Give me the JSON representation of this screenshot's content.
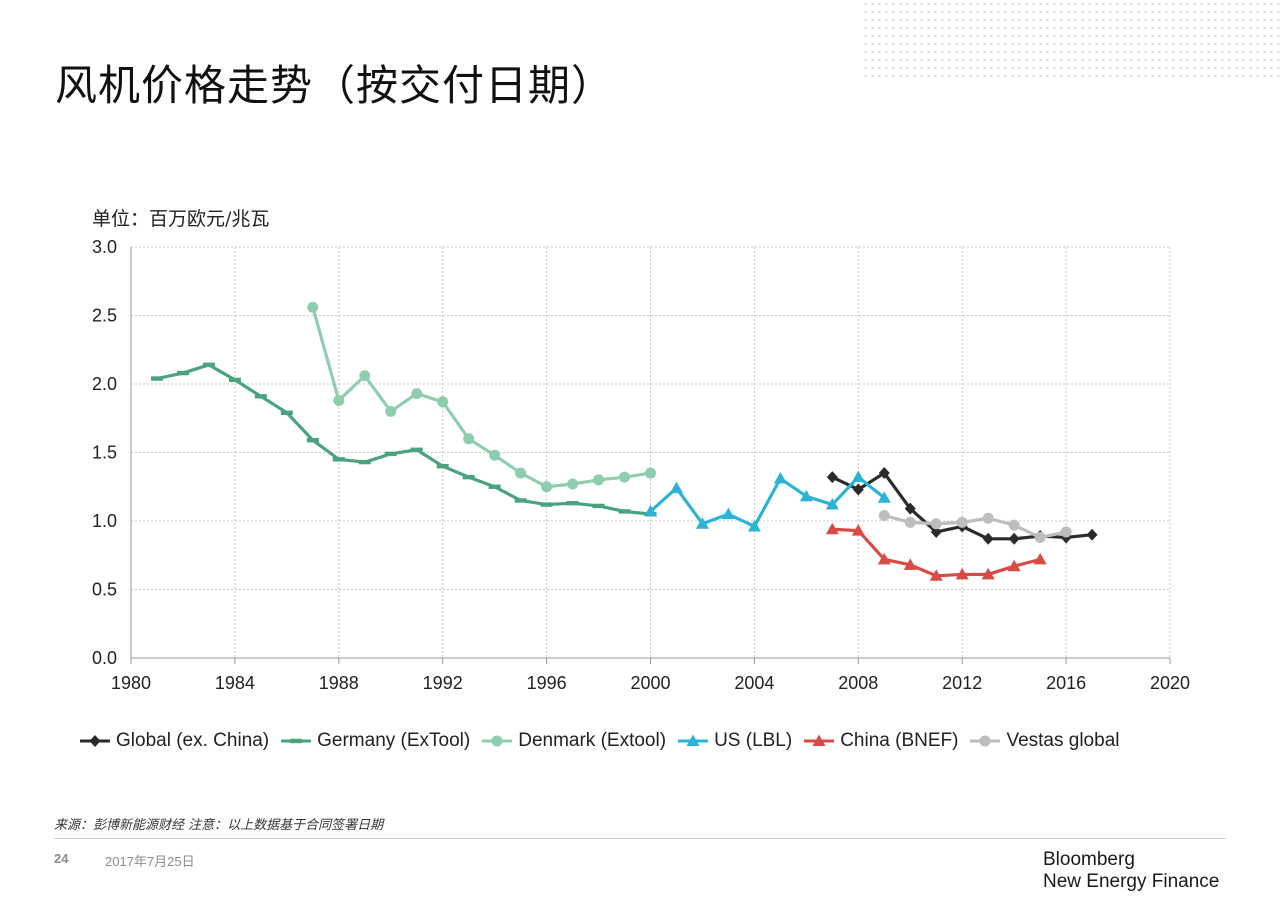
{
  "title": "风机价格走势（按交付日期）",
  "unit_label": "单位：百万欧元/兆瓦",
  "footer": {
    "source_note": "来源：彭博新能源财经 注意：以上数据基于合同签署日期",
    "page_number": "24",
    "date": "2017年7月25日",
    "brand_line1": "Bloomberg",
    "brand_line2": "New Energy Finance"
  },
  "chart_data": {
    "type": "line",
    "xlim": [
      1980,
      2020
    ],
    "ylim": [
      0,
      3.0
    ],
    "xticks": [
      "1980",
      "1984",
      "1988",
      "1992",
      "1996",
      "2000",
      "2004",
      "2008",
      "2012",
      "2016",
      "2020"
    ],
    "yticks": [
      "0.0",
      "0.5",
      "1.0",
      "1.5",
      "2.0",
      "2.5",
      "3.0"
    ],
    "grid": true,
    "legend_position": "bottom",
    "series": [
      {
        "name": "Global (ex. China)",
        "color": "#2b2b2b",
        "marker": "diamond",
        "x": [
          2007,
          2008,
          2009,
          2010,
          2011,
          2012,
          2013,
          2014,
          2015,
          2016,
          2017
        ],
        "y": [
          1.32,
          1.23,
          1.35,
          1.09,
          0.92,
          0.96,
          0.87,
          0.87,
          0.89,
          0.88,
          0.9
        ]
      },
      {
        "name": "Germany (ExTool)",
        "color": "#4aa37e",
        "marker": "dash",
        "x": [
          1981,
          1982,
          1983,
          1984,
          1985,
          1986,
          1987,
          1988,
          1989,
          1990,
          1991,
          1992,
          1993,
          1994,
          1995,
          1996,
          1997,
          1998,
          1999,
          2000
        ],
        "y": [
          2.04,
          2.08,
          2.14,
          2.03,
          1.91,
          1.79,
          1.59,
          1.45,
          1.43,
          1.49,
          1.52,
          1.4,
          1.32,
          1.25,
          1.15,
          1.12,
          1.13,
          1.11,
          1.07,
          1.05
        ]
      },
      {
        "name": "Denmark (Extool)",
        "color": "#8fcdb0",
        "marker": "circle",
        "x": [
          1987,
          1988,
          1989,
          1990,
          1991,
          1992,
          1993,
          1994,
          1995,
          1996,
          1997,
          1998,
          1999,
          2000
        ],
        "y": [
          2.56,
          1.88,
          2.06,
          1.8,
          1.93,
          1.87,
          1.6,
          1.48,
          1.35,
          1.25,
          1.27,
          1.3,
          1.32,
          1.35
        ]
      },
      {
        "name": "US (LBL)",
        "color": "#2bb3d6",
        "marker": "triangle",
        "x": [
          2000,
          2001,
          2002,
          2003,
          2004,
          2005,
          2006,
          2007,
          2008,
          2009
        ],
        "y": [
          1.07,
          1.24,
          0.98,
          1.05,
          0.96,
          1.31,
          1.18,
          1.12,
          1.32,
          1.17
        ]
      },
      {
        "name": "China (BNEF)",
        "color": "#d94a45",
        "marker": "triangle",
        "x": [
          2007,
          2008,
          2009,
          2010,
          2011,
          2012,
          2013,
          2014,
          2015
        ],
        "y": [
          0.94,
          0.93,
          0.72,
          0.68,
          0.6,
          0.61,
          0.61,
          0.67,
          0.72
        ]
      },
      {
        "name": "Vestas global",
        "color": "#bdbdbd",
        "marker": "circle",
        "x": [
          2009,
          2010,
          2011,
          2012,
          2013,
          2014,
          2015,
          2016
        ],
        "y": [
          1.04,
          0.99,
          0.98,
          0.99,
          1.02,
          0.97,
          0.88,
          0.92
        ]
      }
    ]
  }
}
